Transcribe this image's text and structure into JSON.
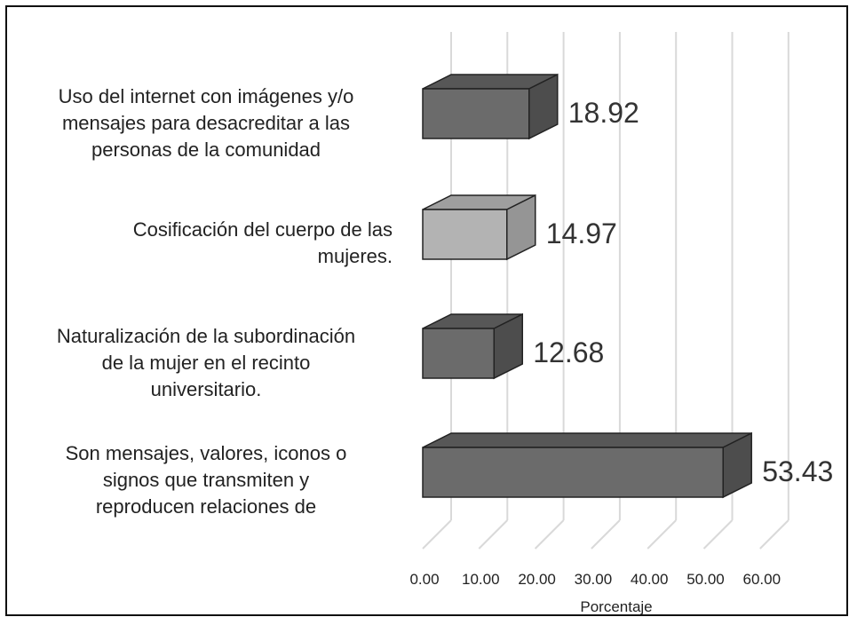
{
  "chart_data": {
    "type": "bar",
    "orientation": "horizontal",
    "style": "3d",
    "categories": [
      "Uso del internet con imágenes y/o mensajes para desacreditar a las personas de la comunidad",
      "Cosificación del cuerpo de las mujeres.",
      "Naturalización de la subordinación de la mujer en el recinto universitario.",
      "Son mensajes, valores, iconos o signos que transmiten y reproducen relaciones de"
    ],
    "category_lines": [
      [
        "Uso del internet con imágenes y/o",
        "mensajes para desacreditar a las",
        "personas de la comunidad"
      ],
      [
        "Cosificación del cuerpo de las",
        "mujeres."
      ],
      [
        "Naturalización de la subordinación",
        "de la mujer en el recinto",
        "universitario."
      ],
      [
        "Son mensajes, valores, iconos o",
        "signos que transmiten y",
        "reproducen relaciones de"
      ]
    ],
    "values": [
      18.92,
      14.97,
      12.68,
      53.43
    ],
    "value_labels": [
      "18.92",
      "14.97",
      "12.68",
      "53.43"
    ],
    "bar_colors": [
      "#6b6b6b",
      "#b3b3b3",
      "#6b6b6b",
      "#6b6b6b"
    ],
    "xlabel": "Porcentaje",
    "xlim": [
      0,
      60
    ],
    "xticks": [
      "0.00",
      "10.00",
      "20.00",
      "30.00",
      "40.00",
      "50.00",
      "60.00"
    ],
    "grid": true
  }
}
